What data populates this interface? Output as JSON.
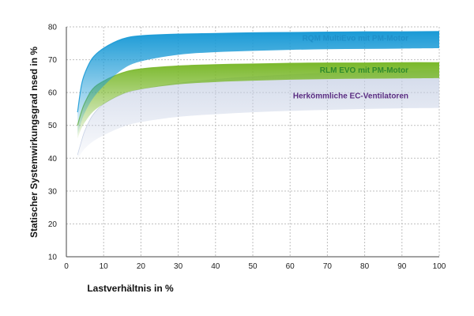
{
  "chart_data": {
    "type": "area",
    "title": "",
    "xlabel": "Lastverhältnis in %",
    "ylabel": "Statischer Systemwirkungsgrad nsed in %",
    "xlim": [
      0,
      100
    ],
    "ylim": [
      10,
      80
    ],
    "x_ticks": [
      0,
      10,
      20,
      30,
      40,
      50,
      60,
      70,
      80,
      90,
      100
    ],
    "y_ticks": [
      10,
      20,
      30,
      40,
      50,
      60,
      70,
      80
    ],
    "grid": true,
    "legend": "none",
    "series": [
      {
        "name": "RQM MultiEvo mit PM-Motor",
        "color": "#1a9ad6",
        "label_color": "#1f8fc9",
        "x": [
          3,
          4,
          5,
          7,
          10,
          15,
          20,
          30,
          40,
          50,
          60,
          70,
          80,
          90,
          100
        ],
        "upper": [
          54,
          62,
          66,
          70.5,
          73.5,
          76.3,
          77.3,
          77.8,
          78,
          78.2,
          78.3,
          78.4,
          78.5,
          78.5,
          78.6
        ],
        "lower": [
          47,
          51,
          54,
          58,
          62,
          67,
          69.5,
          71.5,
          72.3,
          72.7,
          73,
          73.2,
          73.3,
          73.4,
          73.5
        ]
      },
      {
        "name": "RLM EVO mit PM-Motor",
        "color": "#7ab82b",
        "label_color": "#2f8a2c",
        "x": [
          3,
          4,
          5,
          7,
          10,
          15,
          20,
          30,
          40,
          50,
          60,
          70,
          80,
          90,
          100
        ],
        "upper": [
          50,
          54,
          57,
          61,
          63.5,
          66,
          67.2,
          68.1,
          68.5,
          68.7,
          68.9,
          69,
          69,
          69.1,
          69.1
        ],
        "lower": [
          46,
          49,
          51,
          54,
          56.5,
          59.5,
          61,
          62.5,
          63.2,
          63.6,
          63.9,
          64.1,
          64.2,
          64.3,
          64.4
        ]
      },
      {
        "name": "Herkömmliche EC-Ventilatoren",
        "color": "#c3cde3",
        "label_color": "#5b2d82",
        "x": [
          3,
          4,
          5,
          7,
          10,
          15,
          20,
          30,
          40,
          50,
          60,
          70,
          80,
          90,
          100
        ],
        "upper": [
          41,
          45,
          48.5,
          53,
          56.5,
          59.5,
          61,
          62.8,
          64,
          64.8,
          65.4,
          65.9,
          66.2,
          66.5,
          66.7
        ],
        "lower": [
          40,
          41.5,
          43,
          45,
          47,
          49.5,
          51,
          52.6,
          53.4,
          54,
          54.4,
          54.7,
          55,
          55.2,
          55.3
        ]
      }
    ]
  }
}
